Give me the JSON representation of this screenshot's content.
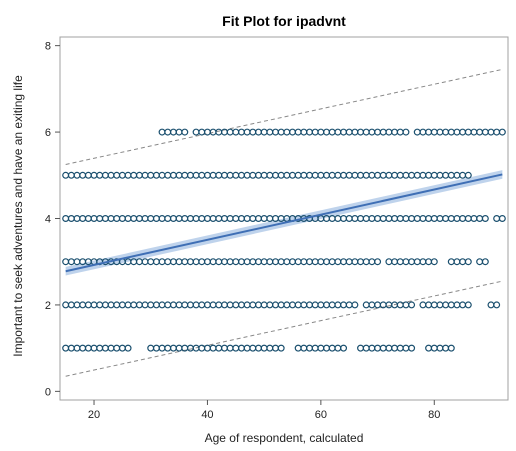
{
  "chart_data": {
    "type": "scatter",
    "title": "Fit Plot for ipadvnt",
    "xlabel": "Age of respondent, calculated",
    "ylabel": "Important to seek adventures and have an exiting life",
    "xlim": [
      14,
      93
    ],
    "ylim": [
      -0.2,
      8.2
    ],
    "xticks": [
      20,
      40,
      60,
      80
    ],
    "yticks": [
      0,
      2,
      4,
      6,
      8
    ],
    "grid": false,
    "legend": "none",
    "colors": {
      "points": "#1a4f6e",
      "fit_line": "#3f6fb5",
      "confidence_band": "#a9c4e6",
      "prediction_limits": "#888888"
    },
    "series": [
      {
        "kind": "points",
        "levels": [
          {
            "y": 1,
            "x_ranges": [
              [
                15,
                26
              ],
              [
                30,
                53
              ],
              [
                56,
                64
              ],
              [
                67,
                76
              ],
              [
                79,
                83
              ]
            ]
          },
          {
            "y": 2,
            "x_ranges": [
              [
                15,
                66
              ],
              [
                68,
                76
              ],
              [
                78,
                86
              ],
              [
                90,
                91
              ]
            ]
          },
          {
            "y": 3,
            "x_ranges": [
              [
                15,
                70
              ],
              [
                72,
                80
              ],
              [
                83,
                86
              ],
              [
                88,
                89
              ]
            ]
          },
          {
            "y": 4,
            "x_ranges": [
              [
                15,
                89
              ],
              [
                91,
                92
              ]
            ]
          },
          {
            "y": 5,
            "x_ranges": [
              [
                15,
                86
              ]
            ]
          },
          {
            "y": 6,
            "x_ranges": [
              [
                32,
                36
              ],
              [
                38,
                75
              ],
              [
                77,
                92
              ]
            ]
          }
        ]
      },
      {
        "kind": "fit",
        "x": [
          15,
          92
        ],
        "y": [
          2.78,
          5.02
        ]
      },
      {
        "kind": "confidence_band",
        "x": [
          15,
          92
        ],
        "lower": [
          2.68,
          4.92
        ],
        "upper": [
          2.88,
          5.12
        ]
      },
      {
        "kind": "prediction_limits",
        "x": [
          15,
          92
        ],
        "lower": [
          0.35,
          2.55
        ],
        "upper": [
          5.25,
          7.45
        ]
      }
    ]
  }
}
